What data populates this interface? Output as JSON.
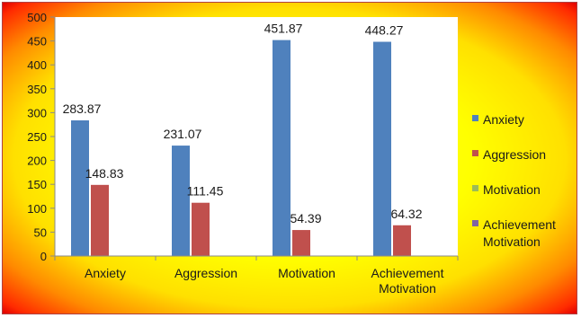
{
  "chart_data": {
    "type": "bar",
    "categories": [
      "Anxiety",
      "Aggression",
      "Motivation",
      "Achievement Motivation"
    ],
    "series": [
      {
        "name": "Anxiety",
        "color": "#4f81bd",
        "values": [
          283.87,
          231.07,
          451.87,
          448.27
        ]
      },
      {
        "name": "Aggression",
        "color": "#c0504d",
        "values": [
          148.83,
          111.45,
          54.39,
          64.32
        ]
      },
      {
        "name": "Motivation",
        "color": "#9bbb59",
        "values": [
          0,
          0,
          0,
          0
        ]
      },
      {
        "name": "Achievement Motivation",
        "color": "#8064a2",
        "values": [
          0,
          0,
          0,
          0
        ]
      }
    ],
    "y_ticks": [
      0,
      50,
      100,
      150,
      200,
      250,
      300,
      350,
      400,
      450,
      500
    ],
    "ylim": [
      0,
      500
    ],
    "grid": false,
    "legend_position": "right",
    "title": "",
    "xlabel": "",
    "ylabel": ""
  }
}
